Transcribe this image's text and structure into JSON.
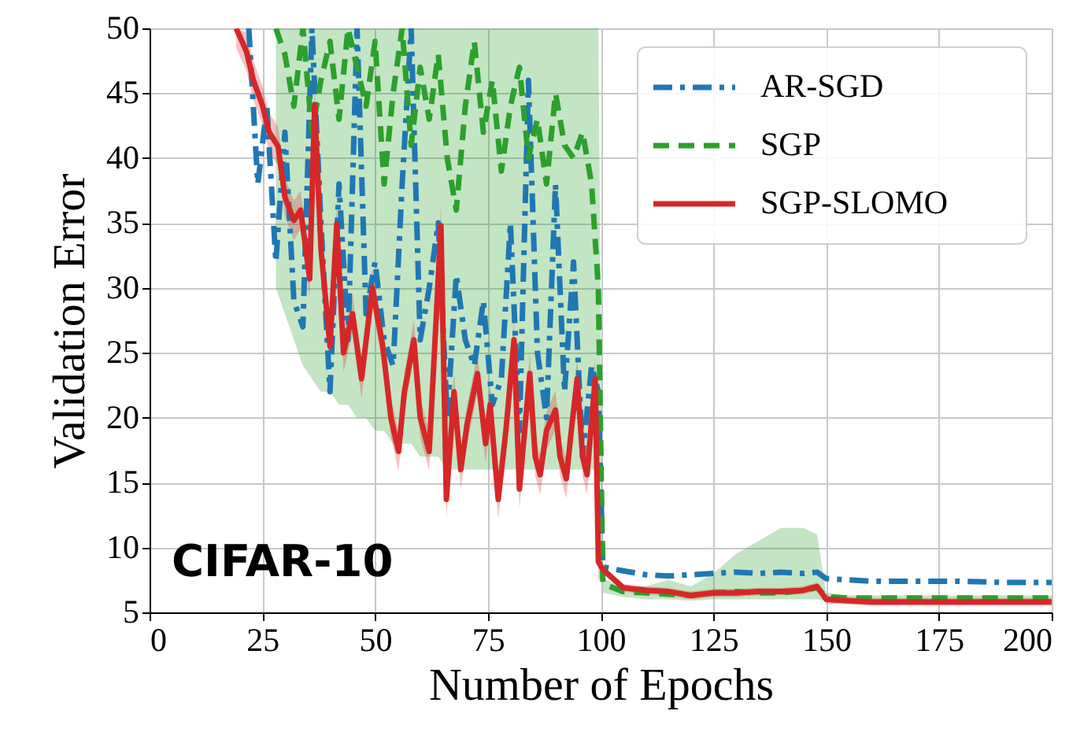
{
  "chart_data": {
    "type": "line",
    "xlabel": "Number of Epochs",
    "ylabel": "Validation Error",
    "xlim": [
      0,
      200
    ],
    "xticks": [
      0,
      25,
      50,
      75,
      100,
      125,
      150,
      175,
      200
    ],
    "ylim": [
      5,
      50
    ],
    "yticks": [
      5,
      10,
      15,
      20,
      25,
      30,
      35,
      40,
      45,
      50
    ],
    "grid": true,
    "legend": "top right",
    "marker": "none",
    "annotations": [
      "CIFAR-10"
    ],
    "series": [
      {
        "name": "AR-SGD",
        "color": "#1f77b4",
        "line_style": "dashdot",
        "x": [
          22,
          24,
          26,
          28,
          30,
          32,
          34,
          36,
          38,
          40,
          42,
          44,
          46,
          48,
          50,
          52,
          54,
          56,
          58,
          60,
          62,
          64,
          66,
          68,
          70,
          72,
          74,
          76,
          78,
          80,
          82,
          84,
          86,
          88,
          90,
          92,
          94,
          96,
          98,
          99.5,
          100.5,
          105,
          110,
          115,
          120,
          125,
          130,
          135,
          140,
          145,
          148,
          150,
          155,
          160,
          170,
          180,
          190,
          200
        ],
        "values": [
          50,
          38,
          44,
          32,
          42,
          29,
          27,
          50,
          35,
          22,
          38,
          26,
          50,
          28,
          32,
          26,
          24,
          38,
          50,
          26,
          30,
          35,
          20,
          31,
          26,
          24,
          29,
          21,
          23,
          35,
          19,
          46,
          25,
          20,
          38,
          22,
          32,
          17,
          24,
          22,
          8.5,
          8.2,
          7.9,
          7.8,
          7.9,
          8.0,
          8.1,
          8.0,
          8.1,
          8.0,
          8.1,
          7.6,
          7.5,
          7.4,
          7.4,
          7.4,
          7.3,
          7.3
        ]
      },
      {
        "name": "SGP",
        "color": "#2ca02c",
        "line_style": "dashed",
        "x": [
          28,
          30,
          32,
          34,
          36,
          38,
          40,
          42,
          44,
          46,
          48,
          50,
          52,
          54,
          56,
          58,
          60,
          62,
          64,
          66,
          68,
          70,
          72,
          74,
          76,
          78,
          80,
          82,
          84,
          86,
          88,
          90,
          92,
          94,
          96,
          98,
          99.5,
          100.5,
          105,
          110,
          115,
          120,
          125,
          130,
          135,
          140,
          145,
          148,
          150,
          155,
          160,
          170,
          180,
          190,
          200
        ],
        "values": [
          50,
          48,
          44,
          50,
          42,
          46,
          49,
          43,
          50,
          47,
          44,
          49,
          38,
          45,
          50,
          41,
          47,
          43,
          48,
          40,
          36,
          44,
          49,
          42,
          46,
          39,
          44,
          47,
          40,
          43,
          38,
          45,
          41,
          40,
          42,
          38,
          30,
          7.2,
          6.6,
          6.5,
          6.4,
          6.3,
          6.5,
          6.6,
          6.5,
          6.5,
          6.7,
          6.9,
          6.2,
          6.1,
          6.1,
          6.1,
          6.1,
          6.1,
          6.1
        ],
        "lower": [
          30,
          28,
          26,
          24,
          23,
          22,
          22,
          21,
          21,
          20,
          20,
          19,
          19,
          18,
          18,
          18,
          17,
          17,
          17,
          16,
          16,
          16,
          16,
          16,
          16,
          16,
          16,
          16,
          16,
          16,
          16,
          16,
          16,
          16,
          16,
          16,
          16,
          6.5,
          6.2,
          6.0,
          6.0,
          5.9,
          6.0,
          6.0,
          6.0,
          6.0,
          6.0,
          6.0,
          5.9,
          5.9,
          5.9,
          5.9,
          5.9,
          5.9,
          5.9
        ],
        "upper": [
          50,
          50,
          50,
          50,
          50,
          50,
          50,
          50,
          50,
          50,
          50,
          50,
          50,
          50,
          50,
          50,
          50,
          50,
          50,
          50,
          50,
          50,
          50,
          50,
          50,
          50,
          50,
          50,
          50,
          50,
          50,
          50,
          50,
          50,
          50,
          50,
          50,
          7.6,
          7.0,
          7.0,
          7.5,
          7.0,
          8.0,
          9.5,
          10.5,
          11.5,
          11.5,
          11,
          6.5,
          6.3,
          6.3,
          6.3,
          6.3,
          6.3,
          6.3
        ]
      },
      {
        "name": "SGP-SLOMO",
        "color": "#d62728",
        "line_style": "solid",
        "x": [
          19.2,
          21.5,
          23,
          25,
          26.5,
          28.5,
          30,
          32,
          33.5,
          35.5,
          36.6,
          38,
          40,
          41.5,
          43,
          45,
          47,
          49.4,
          51.7,
          53.5,
          55.2,
          56.5,
          58.6,
          60,
          62,
          63,
          64.6,
          65.8,
          67.5,
          69,
          70.4,
          72.7,
          74.5,
          75.5,
          77.3,
          79,
          80.8,
          82,
          84.3,
          85.5,
          86.6,
          88,
          90,
          91,
          92.4,
          93.5,
          94.8,
          96,
          97,
          98.8,
          99.5,
          100.5,
          105,
          110,
          115,
          120,
          125,
          130,
          135,
          140,
          145,
          148,
          150,
          155,
          160,
          170,
          180,
          190,
          200
        ],
        "values": [
          50,
          48.2,
          46,
          44.1,
          42,
          40.9,
          37,
          35.2,
          36,
          30.7,
          44.1,
          33,
          25.5,
          34.9,
          25,
          28,
          23,
          30,
          25.5,
          20,
          17.4,
          22,
          26,
          20,
          17.4,
          24,
          34.8,
          13.7,
          22,
          16,
          19.5,
          23.4,
          18,
          21,
          13.7,
          19,
          26,
          14.5,
          23.4,
          17,
          15.6,
          19,
          20.6,
          17,
          15.3,
          19,
          23,
          17,
          15.6,
          23,
          8.9,
          8.3,
          6.9,
          6.7,
          6.6,
          6.3,
          6.5,
          6.5,
          6.6,
          6.6,
          6.7,
          7.0,
          6.0,
          5.9,
          5.8,
          5.8,
          5.8,
          5.8,
          5.8
        ],
        "lower": [
          48.5,
          46.7,
          44.5,
          42.6,
          40.5,
          39.4,
          35.5,
          33.7,
          34.5,
          29.2,
          42.6,
          31.5,
          24,
          33.4,
          23.5,
          26.5,
          21.5,
          28.5,
          24,
          18.5,
          15.9,
          20.5,
          24.5,
          18.5,
          15.9,
          22.5,
          33.3,
          12.2,
          20.5,
          14.5,
          18,
          21.9,
          16.5,
          19.5,
          12.2,
          17.5,
          24.5,
          13,
          21.9,
          15.5,
          14.1,
          17.5,
          19.1,
          15.5,
          13.8,
          17.5,
          21.5,
          15.5,
          14.1,
          21.5,
          7.4,
          8.0,
          6.6,
          6.4,
          6.3,
          6.0,
          6.2,
          6.2,
          6.3,
          6.3,
          6.4,
          6.7,
          5.7,
          5.6,
          5.5,
          5.5,
          5.5,
          5.5,
          5.5
        ],
        "upper": [
          50,
          49.7,
          47.5,
          45.6,
          43.5,
          42.4,
          38.5,
          36.7,
          37.5,
          32.2,
          45.6,
          34.5,
          27,
          36.4,
          26.5,
          29.5,
          24.5,
          31.5,
          27,
          21.5,
          18.9,
          23.5,
          27.5,
          21.5,
          18.9,
          25.5,
          36.3,
          15.2,
          23.5,
          17.5,
          21,
          24.9,
          19.5,
          22.5,
          15.2,
          20.5,
          27.5,
          16,
          24.9,
          18.5,
          17.1,
          20.5,
          22.1,
          18.5,
          16.8,
          20.5,
          24.5,
          18.5,
          17.1,
          24.5,
          10.4,
          8.6,
          7.2,
          7.0,
          6.9,
          6.6,
          6.8,
          6.8,
          6.9,
          6.9,
          7.0,
          7.3,
          6.3,
          6.2,
          6.1,
          6.1,
          6.1,
          6.1,
          6.1
        ]
      }
    ]
  }
}
